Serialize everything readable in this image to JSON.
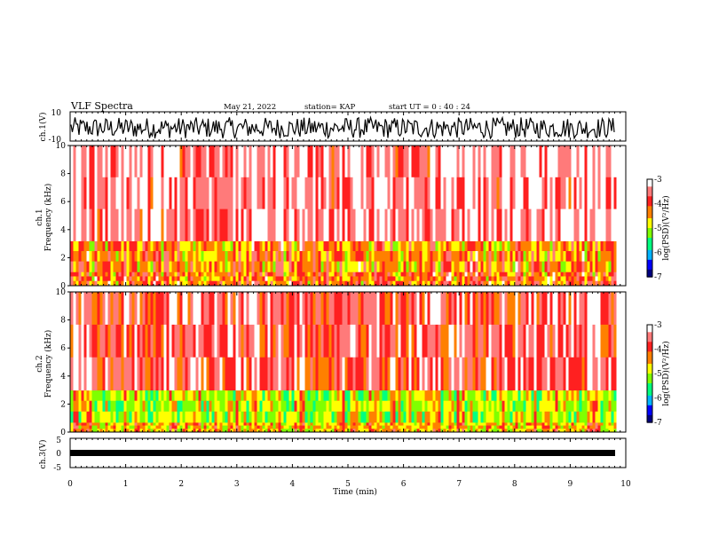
{
  "header": {
    "title": "VLF Spectra",
    "date": "May 21, 2022",
    "station": "station= KAP",
    "start": "start  UT =   0  : 40 : 24"
  },
  "colors": {
    "spectrogram_scale": [
      "#000080",
      "#0000ff",
      "#00b4ff",
      "#00ff80",
      "#80ff00",
      "#ffff00",
      "#ff8000",
      "#ff2020",
      "#ff7a7a",
      "#ffffff"
    ]
  },
  "chart_data": [
    {
      "type": "line",
      "name": "ch1-waveform",
      "ylabel": "ch.1(V)",
      "ylim": [
        -10,
        10
      ],
      "yticks": [
        "10",
        "-10"
      ],
      "xlim": [
        0,
        10
      ],
      "description_values": {
        "min_approx": -8,
        "max_approx": 8,
        "mean_approx": -1
      }
    },
    {
      "type": "heatmap",
      "name": "ch1-spectrogram",
      "ylabel": "ch.1\nFrequency (kHz)",
      "ylabel_lines": [
        "ch.1",
        "Frequency (kHz)"
      ],
      "ylim": [
        0,
        10
      ],
      "yticks": [
        "0",
        "2",
        "4",
        "6",
        "8",
        "10"
      ],
      "xlim": [
        0,
        9.8
      ],
      "colorbar": {
        "label": "log(PSD)(V²/Hz)",
        "range": [
          -7,
          -3
        ],
        "ticks": [
          "-3",
          "-4",
          "-5",
          "-6",
          "-7"
        ]
      },
      "bands": [
        {
          "from_khz": 0,
          "to_khz": 1,
          "level": -4.5
        },
        {
          "from_khz": 1,
          "to_khz": 3.2,
          "level": -4.6
        },
        {
          "from_khz": 3.2,
          "to_khz": 10,
          "level": -3.6
        }
      ]
    },
    {
      "type": "heatmap",
      "name": "ch2-spectrogram",
      "ylabel_lines": [
        "ch.2",
        "Frequency (kHz)"
      ],
      "ylim": [
        0,
        10
      ],
      "yticks": [
        "0",
        "2",
        "4",
        "6",
        "8",
        "10"
      ],
      "xlim": [
        0,
        9.8
      ],
      "colorbar": {
        "label": "log(PSD)(V²/Hz)",
        "range": [
          -7,
          -3
        ],
        "ticks": [
          "-3",
          "-4",
          "-5",
          "-6",
          "-7"
        ]
      },
      "bands": [
        {
          "from_khz": 0,
          "to_khz": 0.7,
          "level": -4.8
        },
        {
          "from_khz": 0.7,
          "to_khz": 3.0,
          "level": -5.2
        },
        {
          "from_khz": 3.0,
          "to_khz": 10,
          "level": -3.9
        }
      ]
    },
    {
      "type": "line",
      "name": "ch3-waveform",
      "ylabel": "ch.3(V)",
      "ylim": [
        -5,
        5
      ],
      "yticks": [
        "5",
        "0",
        "-5"
      ],
      "xlim": [
        0,
        10
      ],
      "description_values": {
        "level_approx": 0.3
      }
    }
  ],
  "xaxis": {
    "label": "Time  (min)",
    "ticks": [
      "0",
      "1",
      "2",
      "3",
      "4",
      "5",
      "6",
      "7",
      "8",
      "9",
      "10"
    ],
    "range": [
      0,
      10
    ]
  }
}
